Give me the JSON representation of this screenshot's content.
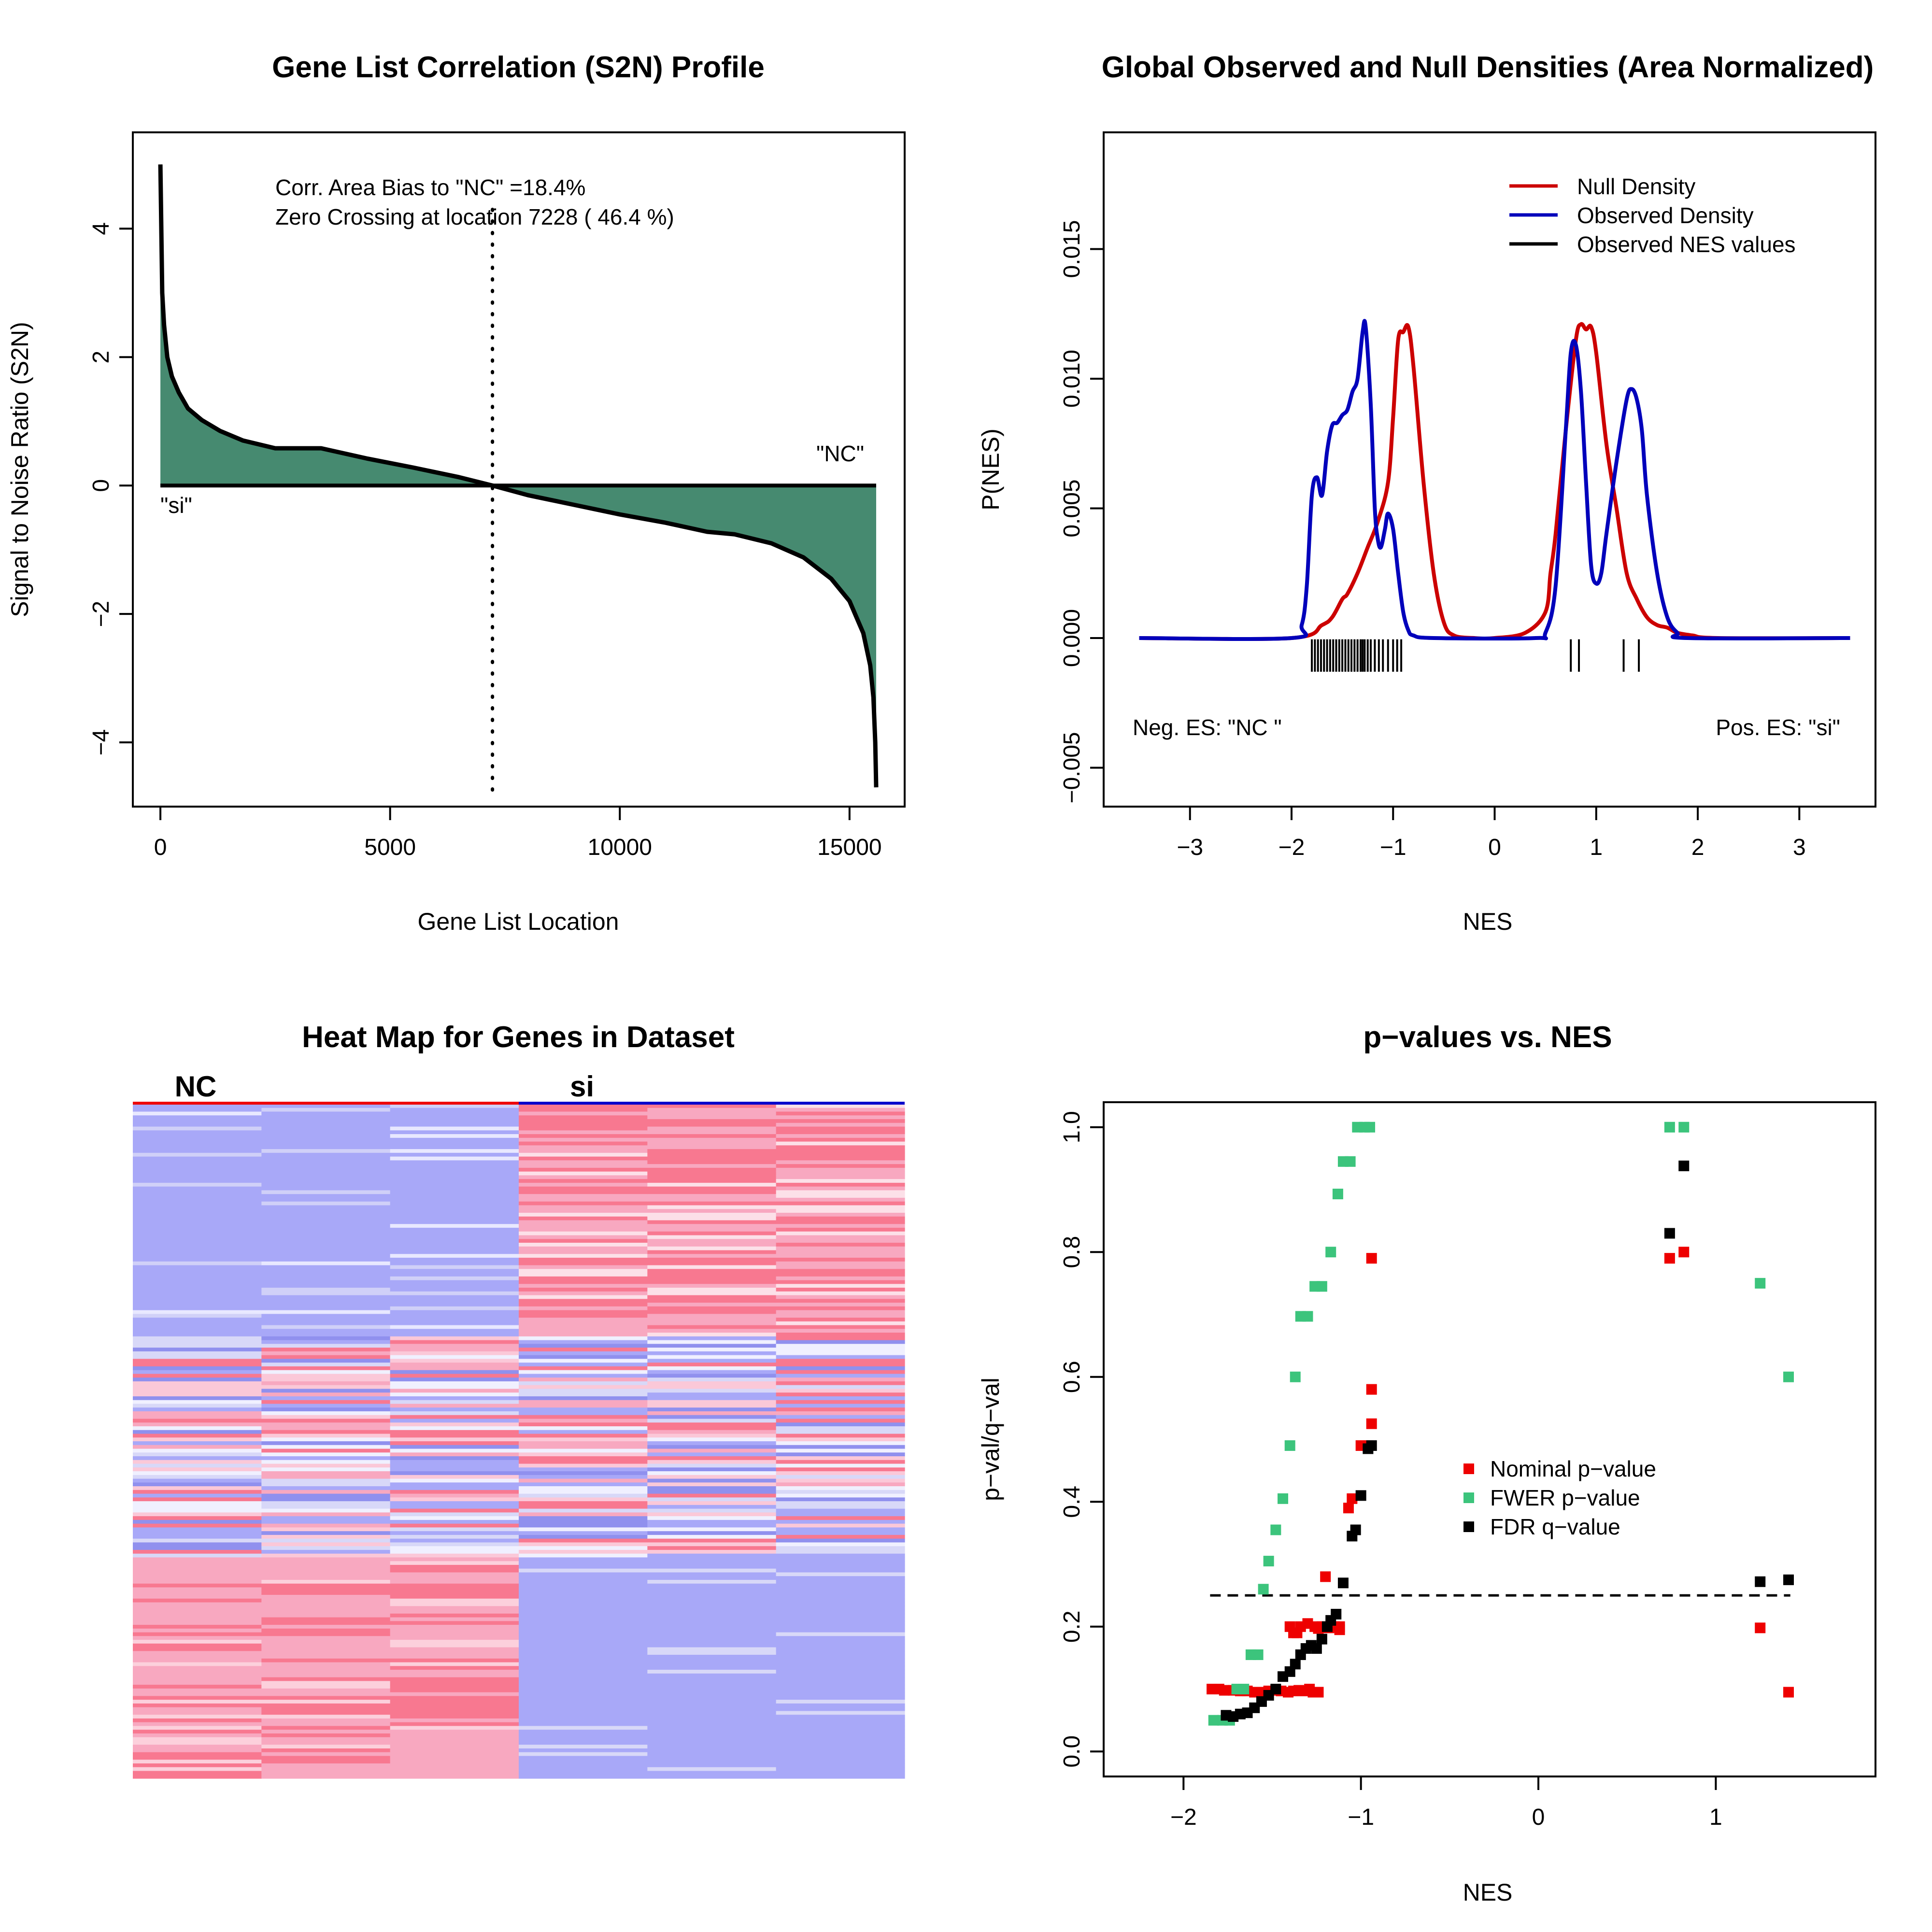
{
  "colors": {
    "s2n_fill": "#468a70",
    "null_density": "#cc0000",
    "observed_density": "#0000bb",
    "nominal": "#ee0000",
    "fwer": "#3cc47c",
    "fdr": "#000000",
    "heat_blue": "#a8a8f8",
    "heat_red": "#f87890",
    "heat_pink": "#f8a8c0"
  },
  "chart_data": [
    {
      "type": "area",
      "title": "Gene List Correlation (S2N) Profile",
      "xlabel": "Gene List Location",
      "ylabel": "Signal to Noise Ratio (S2N)",
      "xlim": [
        -600,
        16200
      ],
      "ylim": [
        -5.0,
        5.5
      ],
      "xticks": [
        "0",
        "5000",
        "10000",
        "15000"
      ],
      "yticks": [
        "4",
        "2",
        "0",
        "−2",
        "−4"
      ],
      "x": [
        0,
        40,
        80,
        150,
        250,
        400,
        600,
        900,
        1300,
        1800,
        2500,
        3500,
        4500,
        5500,
        6500,
        7228,
        8000,
        9000,
        10000,
        11000,
        11900,
        12500,
        13300,
        14000,
        14600,
        15000,
        15300,
        15450,
        15520,
        15560,
        15580
      ],
      "values": [
        5.0,
        3.0,
        2.5,
        2.0,
        1.7,
        1.45,
        1.2,
        1.02,
        0.85,
        0.7,
        0.58,
        0.58,
        0.42,
        0.28,
        0.13,
        0.0,
        -0.15,
        -0.3,
        -0.45,
        -0.58,
        -0.72,
        -0.76,
        -0.9,
        -1.12,
        -1.45,
        -1.8,
        -2.3,
        -2.8,
        -3.3,
        -4.0,
        -4.7
      ],
      "annotations": [
        "Corr. Area Bias to \"NC\" =18.4%",
        "Zero Crossing at location  7228  ( 46.4  %)",
        "\"NC\"",
        "\"si\""
      ],
      "zero_crossing": 7228
    },
    {
      "type": "line",
      "title": "Global Observed and Null Densities (Area Normalized)",
      "xlabel": "NES",
      "ylabel": "P(NES)",
      "xlim": [
        -3.85,
        3.75
      ],
      "ylim": [
        -0.0065,
        0.0195
      ],
      "xticks": [
        "−3",
        "−2",
        "−1",
        "0",
        "1",
        "2",
        "3"
      ],
      "yticks": [
        "−0.005",
        "0.000",
        "0.005",
        "0.010",
        "0.015"
      ],
      "legend": [
        "Null Density",
        "Observed Density",
        "Observed NES values"
      ],
      "series": [
        {
          "name": "Null Density",
          "x": [
            -3.5,
            -2.0,
            -1.7,
            -1.6,
            -1.5,
            -1.45,
            -1.35,
            -1.25,
            -1.15,
            -1.05,
            -1.0,
            -0.95,
            -0.9,
            -0.85,
            -0.8,
            -0.7,
            -0.6,
            -0.5,
            -0.4,
            -0.2,
            0.0,
            0.3,
            0.5,
            0.55,
            0.6,
            0.7,
            0.8,
            0.85,
            0.9,
            0.95,
            1.0,
            1.1,
            1.2,
            1.3,
            1.4,
            1.5,
            1.6,
            1.7,
            1.8,
            1.95,
            2.2,
            3.5
          ],
          "y": [
            0.0,
            0.0,
            0.0005,
            0.0008,
            0.0015,
            0.0017,
            0.0025,
            0.0035,
            0.0045,
            0.006,
            0.0085,
            0.0115,
            0.0118,
            0.012,
            0.0105,
            0.006,
            0.0025,
            0.0006,
            0.0001,
            0.0,
            0.0,
            0.0002,
            0.001,
            0.0025,
            0.004,
            0.008,
            0.0115,
            0.0121,
            0.0119,
            0.012,
            0.011,
            0.0075,
            0.005,
            0.0025,
            0.0015,
            0.0008,
            0.0005,
            0.0004,
            0.0002,
            0.0001,
            0.0,
            0.0
          ]
        },
        {
          "name": "Observed Density",
          "x": [
            -3.5,
            -2.0,
            -1.9,
            -1.85,
            -1.8,
            -1.75,
            -1.7,
            -1.65,
            -1.6,
            -1.55,
            -1.5,
            -1.45,
            -1.4,
            -1.35,
            -1.3,
            -1.27,
            -1.22,
            -1.18,
            -1.15,
            -1.12,
            -1.08,
            -1.05,
            -1.0,
            -0.95,
            -0.9,
            -0.85,
            -0.8,
            -0.6,
            0.4,
            0.5,
            0.6,
            0.7,
            0.75,
            0.8,
            0.85,
            0.9,
            0.95,
            1.0,
            1.05,
            1.1,
            1.2,
            1.3,
            1.35,
            1.4,
            1.45,
            1.5,
            1.6,
            1.7,
            1.8,
            1.9,
            3.5
          ],
          "y": [
            0.0,
            0.0,
            0.0005,
            0.002,
            0.0055,
            0.0062,
            0.0055,
            0.0072,
            0.0082,
            0.0083,
            0.0086,
            0.0088,
            0.0095,
            0.01,
            0.0118,
            0.012,
            0.009,
            0.005,
            0.0038,
            0.0035,
            0.0042,
            0.0048,
            0.0042,
            0.0025,
            0.001,
            0.0003,
            0.0001,
            0.0,
            0.0,
            0.0002,
            0.002,
            0.008,
            0.011,
            0.0113,
            0.0095,
            0.006,
            0.0028,
            0.0021,
            0.0025,
            0.004,
            0.0068,
            0.0092,
            0.0096,
            0.0092,
            0.008,
            0.0055,
            0.0025,
            0.0008,
            0.0002,
            0.0,
            0.0
          ]
        }
      ],
      "nes_values": [
        -1.8,
        -1.77,
        -1.74,
        -1.71,
        -1.68,
        -1.65,
        -1.62,
        -1.59,
        -1.56,
        -1.53,
        -1.5,
        -1.47,
        -1.44,
        -1.41,
        -1.38,
        -1.35,
        -1.32,
        -1.3,
        -1.28,
        -1.25,
        -1.22,
        -1.18,
        -1.14,
        -1.1,
        -1.05,
        -1.0,
        -0.96,
        -0.92,
        0.75,
        0.83,
        1.27,
        1.42
      ],
      "annotations": [
        "Neg. ES: \"NC \"",
        "Pos. ES: \"si\""
      ]
    },
    {
      "type": "heatmap",
      "title": "Heat Map for Genes in Dataset",
      "groups": [
        "NC",
        "si"
      ],
      "columns_per_group": 3,
      "group_colors": [
        "#ee0000",
        "#0000cc"
      ]
    },
    {
      "type": "scatter",
      "title": "p−values vs. NES",
      "xlabel": "NES",
      "ylabel": "p−val/q−val",
      "xlim": [
        -2.45,
        1.9
      ],
      "ylim": [
        -0.04,
        1.04
      ],
      "xticks": [
        "−2",
        "−1",
        "0",
        "1"
      ],
      "yticks": [
        "0.0",
        "0.2",
        "0.4",
        "0.6",
        "0.8",
        "1.0"
      ],
      "threshold": 0.25,
      "threshold_range": [
        -1.85,
        1.42
      ],
      "legend": [
        "Nominal p−value",
        "FWER p−value",
        "FDR q−value"
      ],
      "series": [
        {
          "name": "Nominal p−value",
          "x": [
            -1.84,
            -1.8,
            -1.77,
            -1.72,
            -1.68,
            -1.64,
            -1.6,
            -1.56,
            -1.52,
            -1.48,
            -1.45,
            -1.41,
            -1.38,
            -1.35,
            -1.32,
            -1.29,
            -1.27,
            -1.24,
            -1.22,
            -1.2,
            -1.18,
            -1.15,
            -1.12,
            -1.4,
            -1.38,
            -1.36,
            -1.34,
            -1.3,
            -1.26,
            -1.24,
            -1.2,
            -1.12,
            -1.07,
            -1.05,
            -1.0,
            -0.96,
            -0.94,
            -0.94,
            -0.94,
            0.74,
            0.82,
            1.25,
            1.41
          ],
          "y": [
            0.1,
            0.1,
            0.098,
            0.098,
            0.097,
            0.097,
            0.095,
            0.095,
            0.097,
            0.098,
            0.097,
            0.095,
            0.097,
            0.098,
            0.097,
            0.1,
            0.095,
            0.095,
            0.2,
            0.2,
            0.198,
            0.2,
            0.195,
            0.2,
            0.19,
            0.19,
            0.2,
            0.205,
            0.2,
            0.197,
            0.28,
            0.2,
            0.39,
            0.405,
            0.49,
            0.49,
            0.525,
            0.58,
            0.79,
            0.79,
            0.8,
            0.198,
            0.095
          ]
        },
        {
          "name": "FWER p−value",
          "x": [
            -1.83,
            -1.78,
            -1.74,
            -1.7,
            -1.66,
            -1.62,
            -1.58,
            -1.55,
            -1.52,
            -1.48,
            -1.44,
            -1.4,
            -1.37,
            -1.34,
            -1.3,
            -1.26,
            -1.22,
            -1.17,
            -1.13,
            -1.1,
            -1.06,
            -1.02,
            -0.98,
            -0.95,
            0.74,
            0.82,
            1.25,
            1.41
          ],
          "y": [
            0.05,
            0.05,
            0.05,
            0.1,
            0.1,
            0.155,
            0.155,
            0.26,
            0.305,
            0.355,
            0.405,
            0.49,
            0.6,
            0.697,
            0.697,
            0.745,
            0.745,
            0.8,
            0.893,
            0.945,
            0.945,
            1.0,
            1.0,
            1.0,
            1.0,
            1.0,
            0.75,
            0.6
          ]
        },
        {
          "name": "FDR q−value",
          "x": [
            -1.76,
            -1.72,
            -1.68,
            -1.64,
            -1.6,
            -1.56,
            -1.52,
            -1.48,
            -1.44,
            -1.4,
            -1.37,
            -1.34,
            -1.31,
            -1.28,
            -1.25,
            -1.22,
            -1.19,
            -1.17,
            -1.14,
            -1.1,
            -1.05,
            -1.03,
            -1.0,
            -0.96,
            -0.94,
            0.74,
            0.82,
            1.25,
            1.41
          ],
          "y": [
            0.058,
            0.056,
            0.06,
            0.062,
            0.07,
            0.08,
            0.09,
            0.1,
            0.12,
            0.128,
            0.14,
            0.155,
            0.165,
            0.17,
            0.165,
            0.18,
            0.2,
            0.21,
            0.22,
            0.27,
            0.345,
            0.355,
            0.41,
            0.485,
            0.49,
            0.83,
            0.938,
            0.272,
            0.275
          ]
        }
      ]
    }
  ]
}
